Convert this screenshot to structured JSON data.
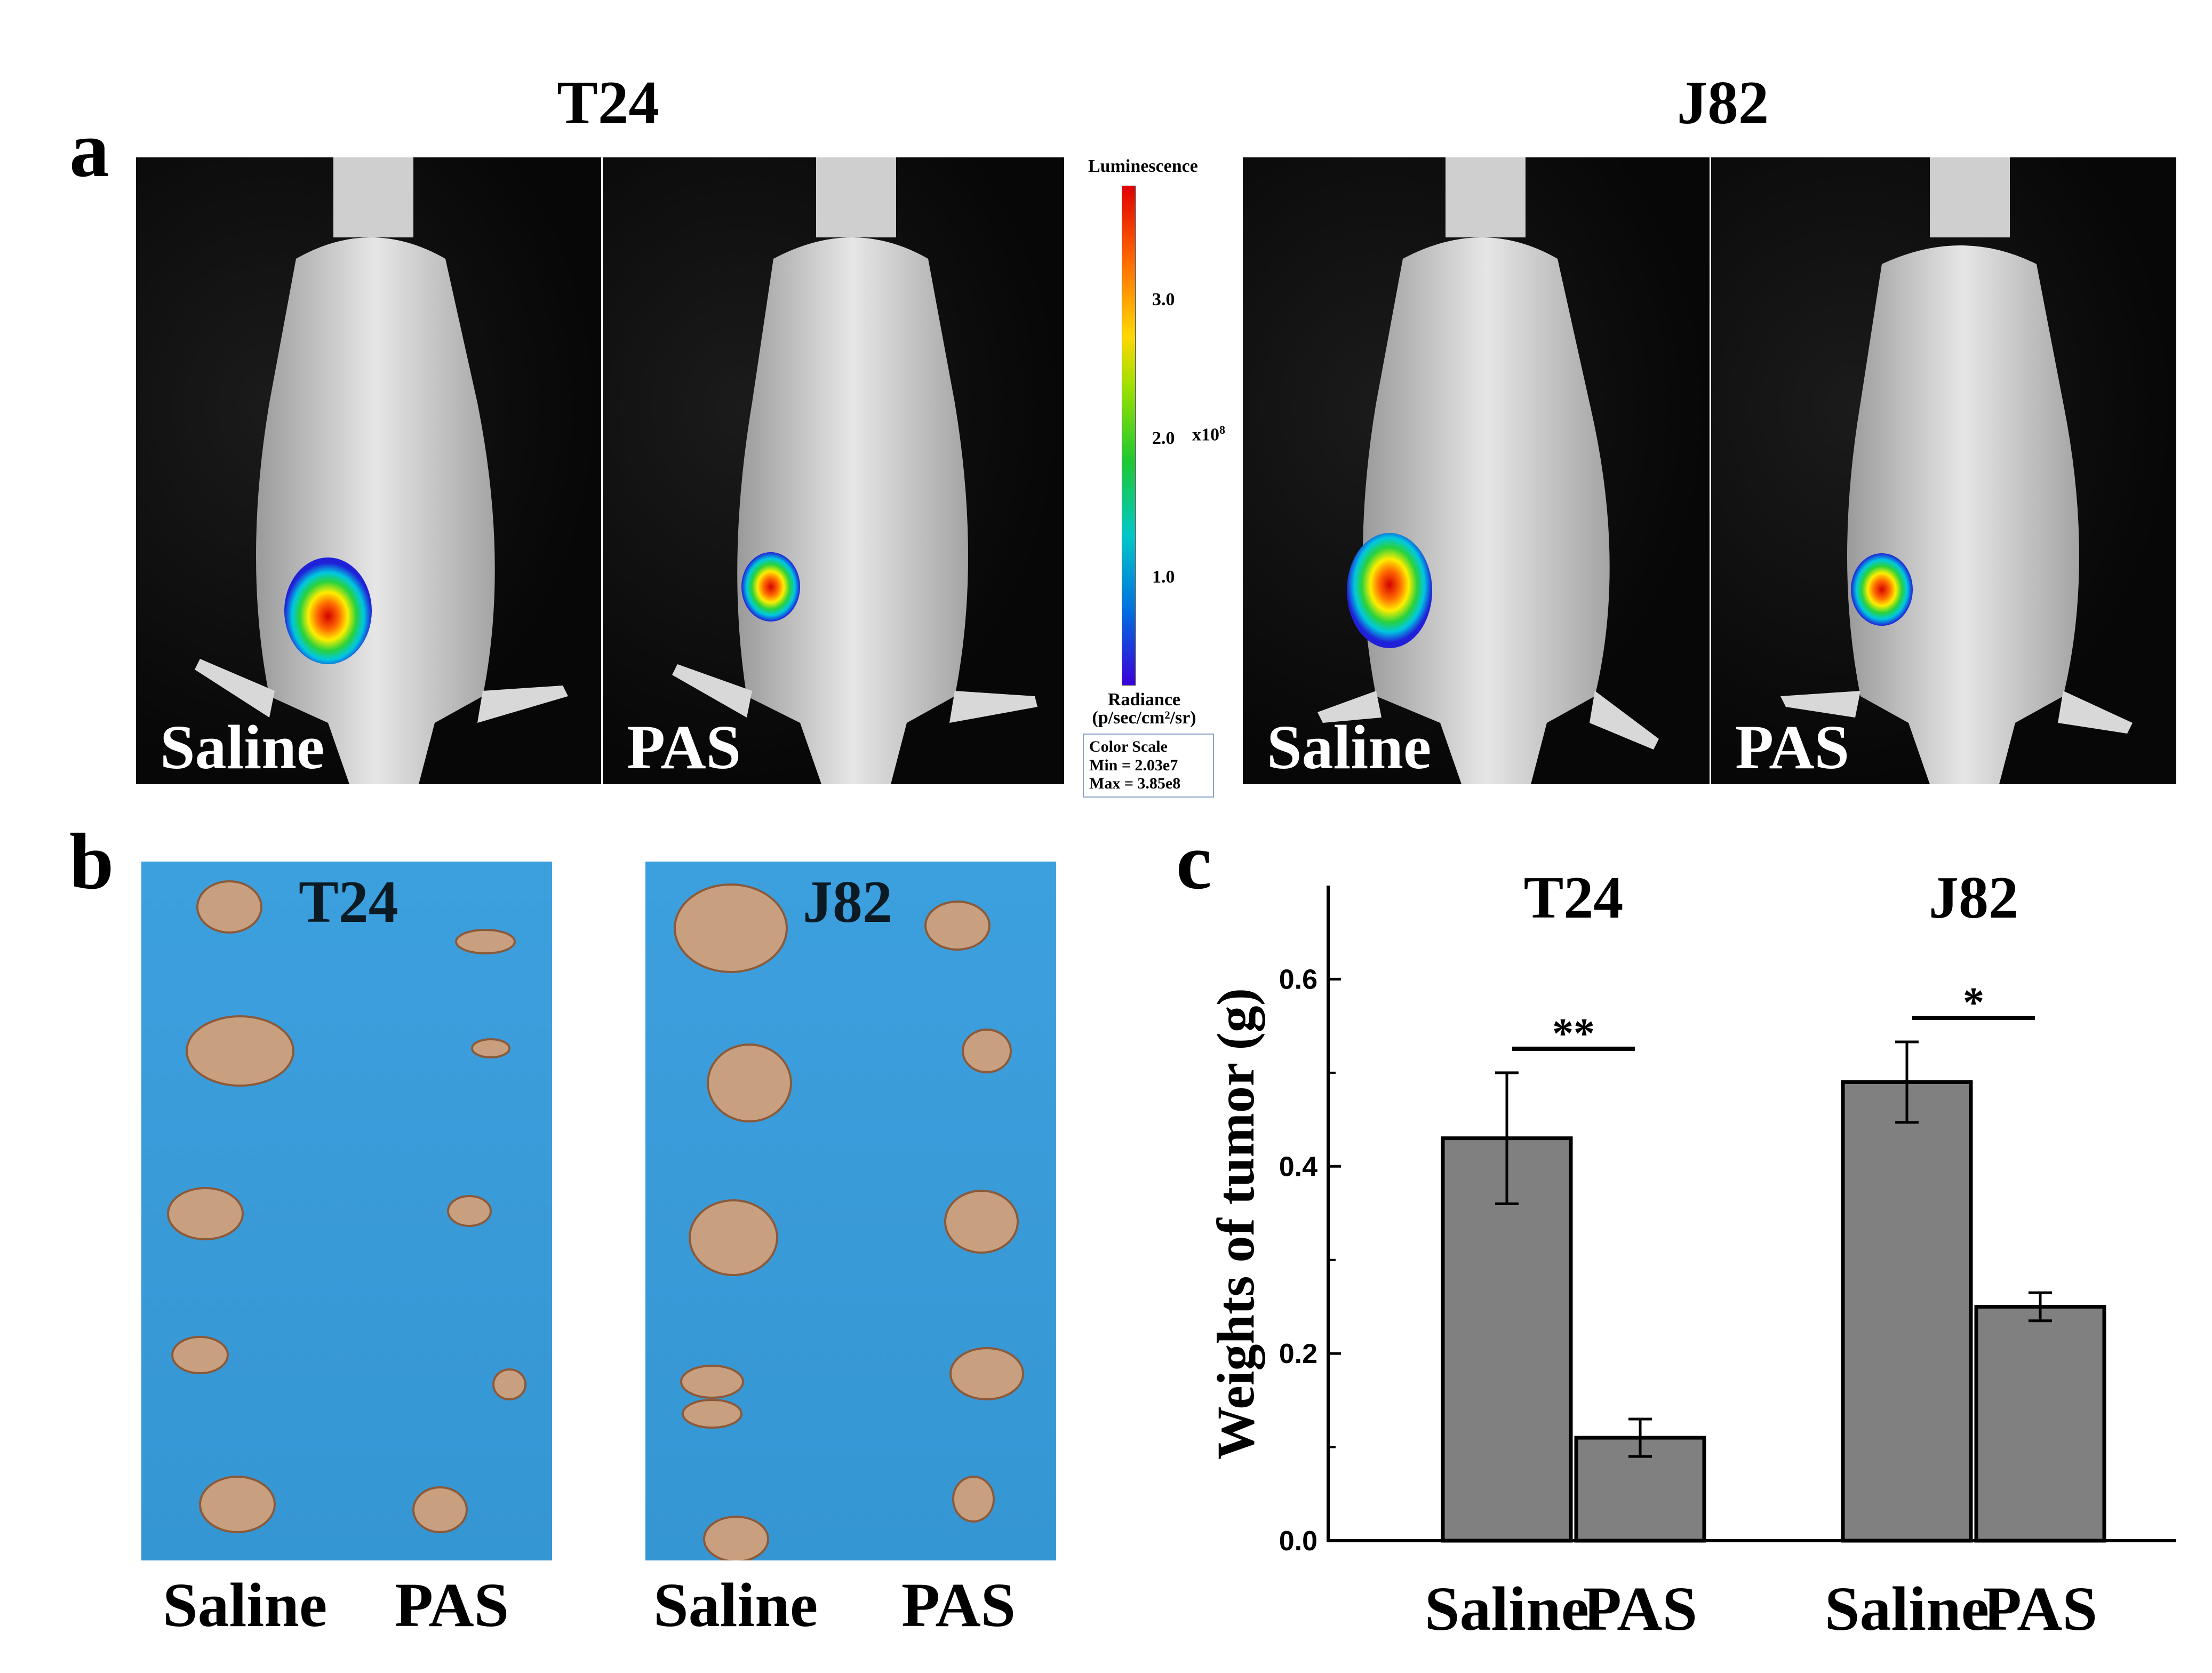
{
  "panel_a": {
    "letter": "a",
    "headings": [
      "T24",
      "J82"
    ],
    "tiles": [
      {
        "label": "Saline"
      },
      {
        "label": "PAS"
      },
      {
        "label": "Saline"
      },
      {
        "label": "PAS"
      }
    ],
    "colorbar": {
      "title": "Luminescence",
      "ticks": [
        "3.0",
        "2.0",
        "1.0"
      ],
      "multiplier": "x10",
      "multiplier_exp": "8",
      "radiance_line1": "Radiance",
      "radiance_line2": "(p/sec/cm²/sr)",
      "scale_title": "Color Scale",
      "scale_min": "Min = 2.03e7",
      "scale_max": "Max = 3.85e8"
    }
  },
  "panel_b": {
    "letter": "b",
    "photos": [
      {
        "title": "T24",
        "left_label": "Saline",
        "right_label": "PAS"
      },
      {
        "title": "J82",
        "left_label": "Saline",
        "right_label": "PAS"
      }
    ]
  },
  "panel_c": {
    "letter": "c"
  },
  "chart_data": {
    "type": "bar",
    "ylabel": "Weights of tumor (g)",
    "xlabel": "",
    "ylim": [
      0.0,
      0.7
    ],
    "yticks": [
      "0.0",
      "0.2",
      "0.4",
      "0.6"
    ],
    "groups": [
      {
        "name": "T24",
        "significance": "**",
        "bars": [
          {
            "category": "Saline",
            "value": 0.43,
            "error": 0.07
          },
          {
            "category": "PAS",
            "value": 0.11,
            "error": 0.02
          }
        ]
      },
      {
        "name": "J82",
        "significance": "*",
        "bars": [
          {
            "category": "Saline",
            "value": 0.49,
            "error": 0.043
          },
          {
            "category": "PAS",
            "value": 0.25,
            "error": 0.015
          }
        ]
      }
    ],
    "bar_color": "#808080",
    "grid": false
  }
}
